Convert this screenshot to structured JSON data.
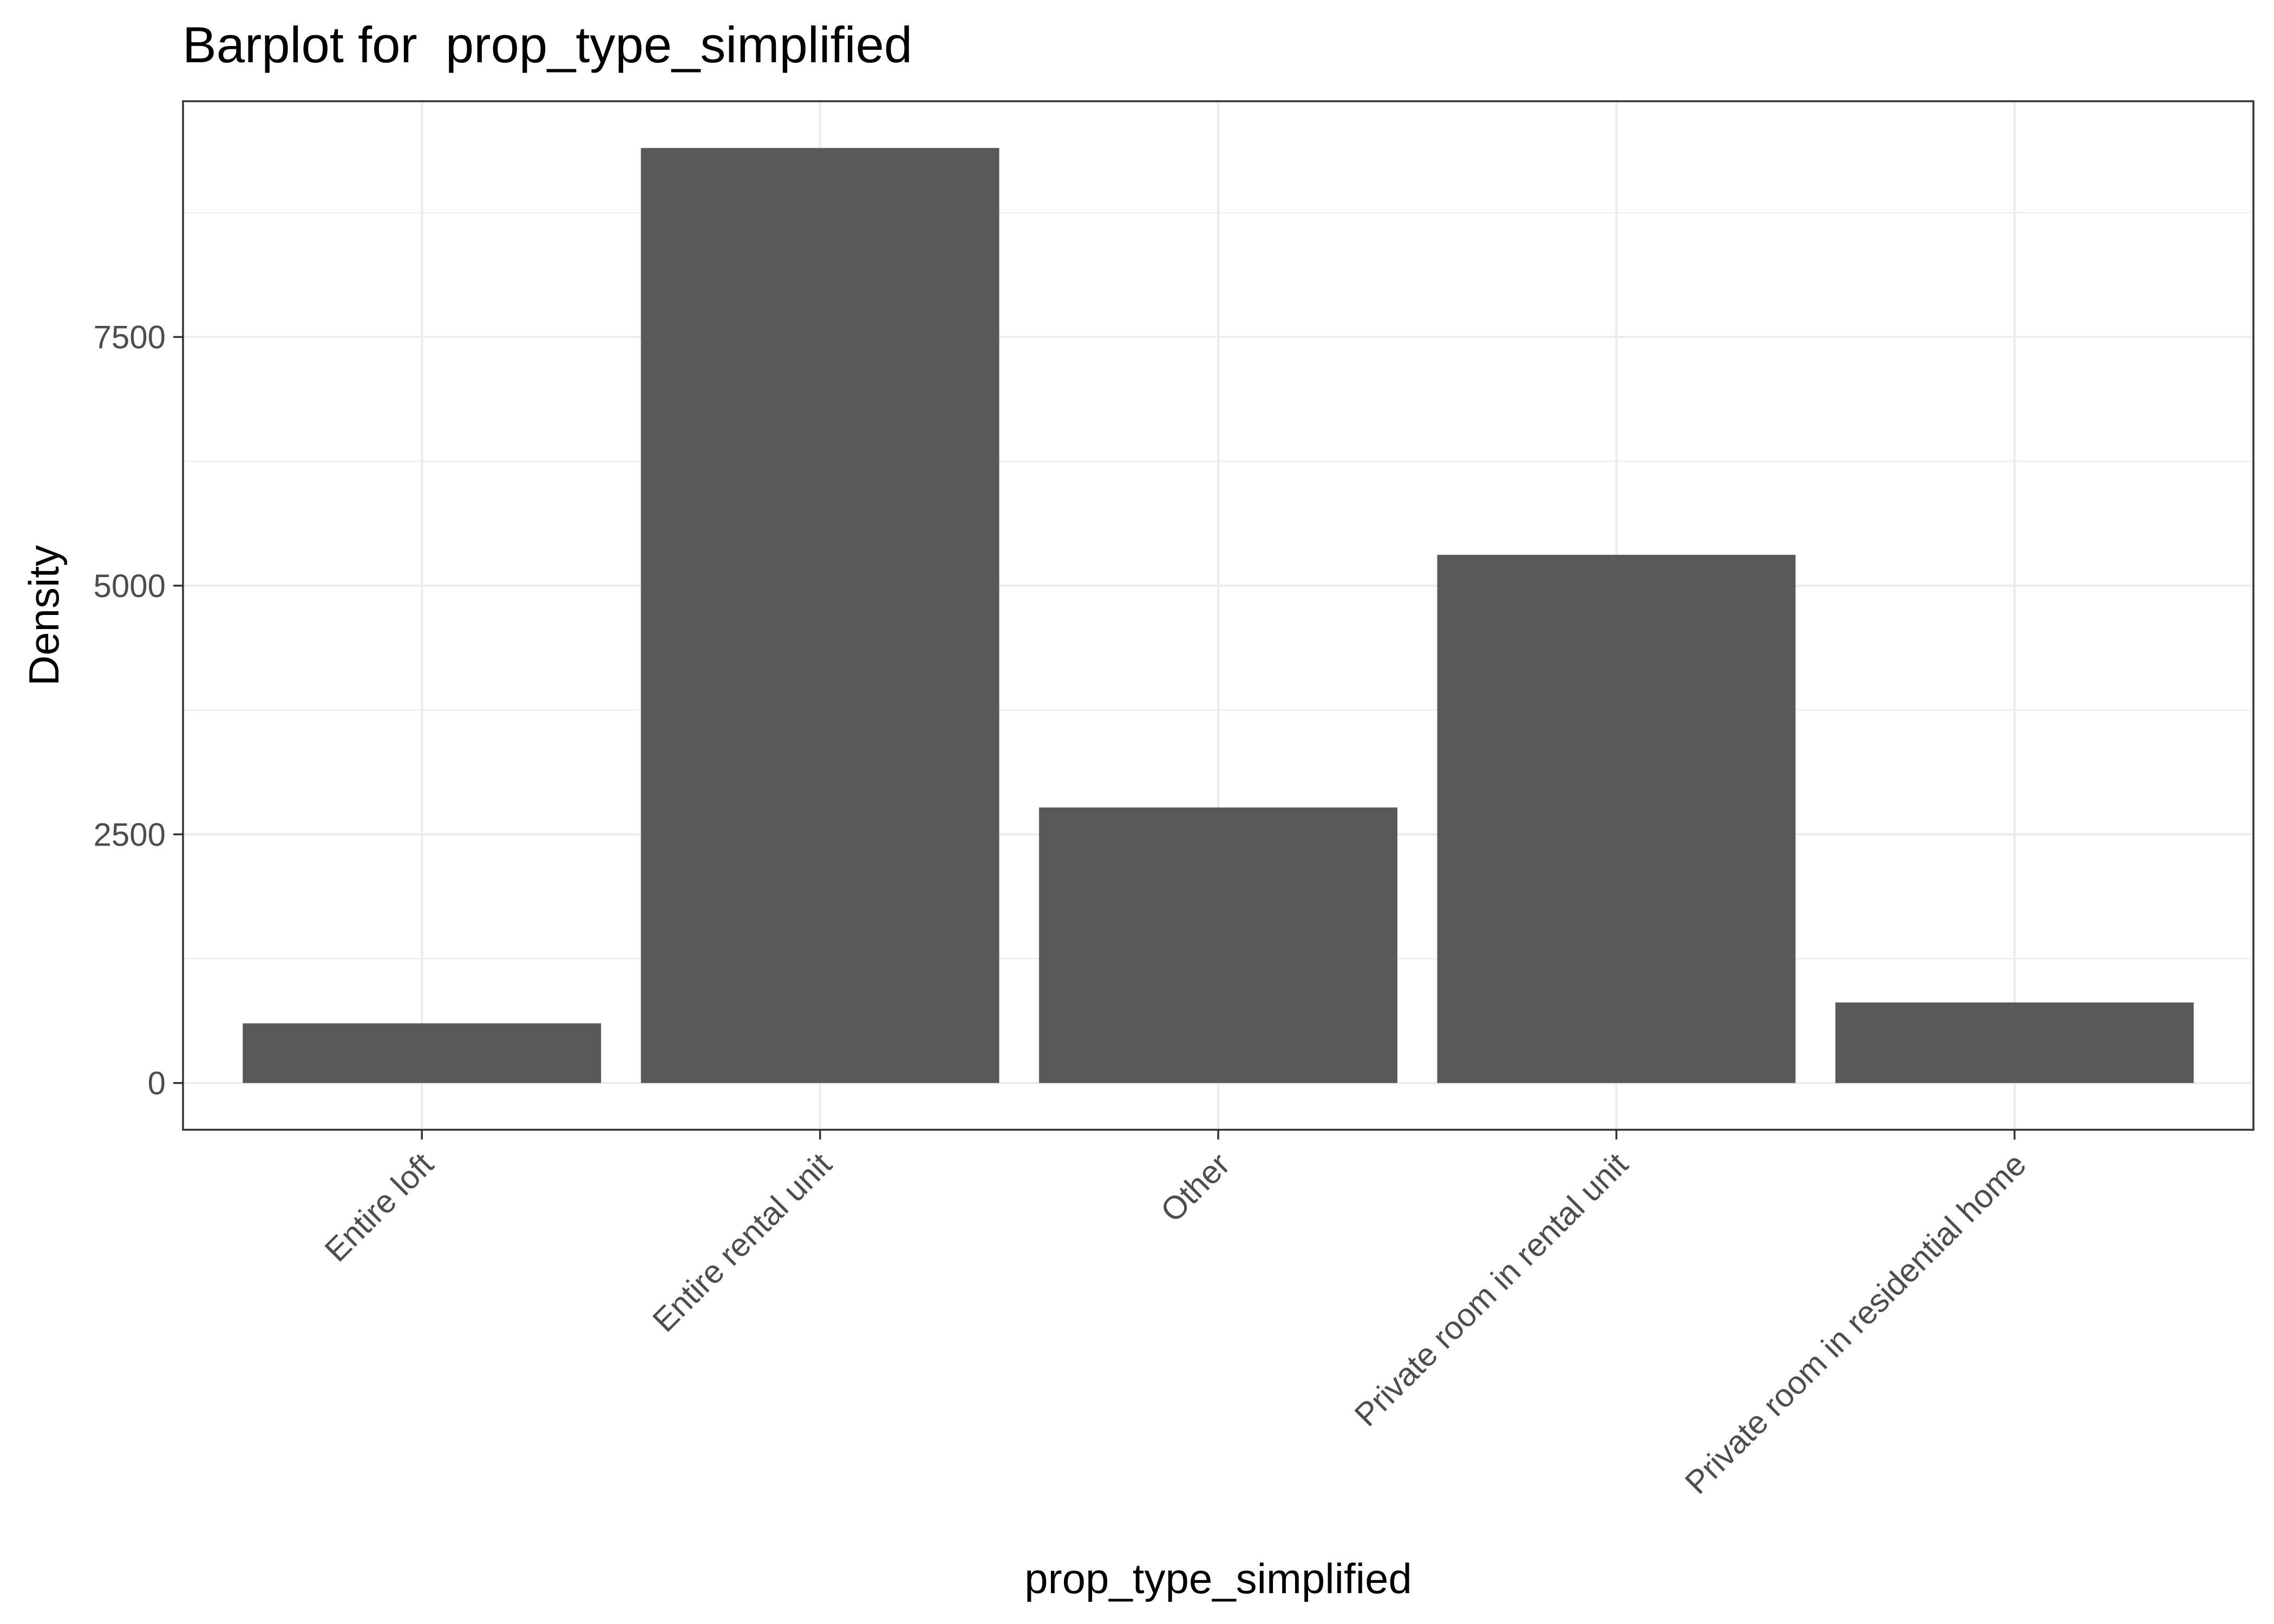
{
  "chart_data": {
    "type": "bar",
    "title": "Barplot for  prop_type_simplified",
    "xlabel": "prop_type_simplified",
    "ylabel": "Density",
    "categories": [
      "Entire loft",
      "Entire rental unit",
      "Other",
      "Private room in rental unit",
      "Private room in residential home"
    ],
    "values": [
      600,
      9400,
      2770,
      5310,
      810
    ],
    "y_ticks": [
      0,
      2500,
      5000,
      7500
    ],
    "y_tick_labels": [
      "0",
      "2500",
      "5000",
      "7500"
    ],
    "ylim": [
      -470,
      9870
    ],
    "grid": true,
    "legend": "none",
    "colors": {
      "bar": "#595959",
      "grid": "#ebebeb",
      "panel_border": "#333333",
      "text": "#000000",
      "tick_text": "#4d4d4d"
    }
  }
}
